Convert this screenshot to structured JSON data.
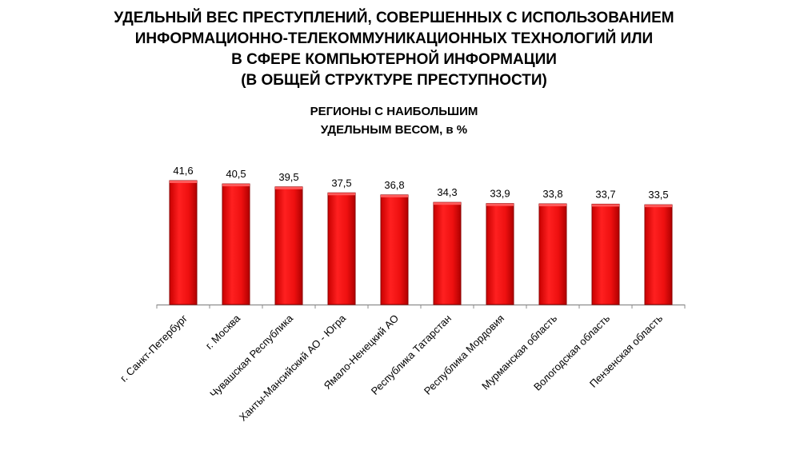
{
  "title_lines": [
    "УДЕЛЬНЫЙ ВЕС ПРЕСТУПЛЕНИЙ, СОВЕРШЕННЫХ С ИСПОЛЬЗОВАНИЕМ",
    "ИНФОРМАЦИОННО-ТЕЛЕКОММУНИКАЦИОННЫХ ТЕХНОЛОГИЙ ИЛИ",
    "В СФЕРЕ КОМПЬЮТЕРНОЙ ИНФОРМАЦИИ",
    "(В ОБЩЕЙ СТРУКТУРЕ ПРЕСТУПНОСТИ)"
  ],
  "subtitle_lines": [
    "РЕГИОНЫ С НАИБОЛЬШИМ",
    "УДЕЛЬНЫМ ВЕСОМ, в %"
  ],
  "chart_data": {
    "type": "bar",
    "title": "УДЕЛЬНЫЙ ВЕС ПРЕСТУПЛЕНИЙ, СОВЕРШЕННЫХ С ИСПОЛЬЗОВАНИЕМ ИНФОРМАЦИОННО-ТЕЛЕКОММУНИКАЦИОННЫХ ТЕХНОЛОГИЙ ИЛИ В СФЕРЕ КОМПЬЮТЕРНОЙ ИНФОРМАЦИИ (В ОБЩЕЙ СТРУКТУРЕ ПРЕСТУПНОСТИ)",
    "subtitle": "РЕГИОНЫ С НАИБОЛЬШИМ УДЕЛЬНЫМ ВЕСОМ, в %",
    "categories": [
      "г. Санкт-Петербург",
      "г. Москва",
      "Чувашская Республика",
      "Ханты-Мансийский АО - Югра",
      "Ямало-Ненецкий АО",
      "Республика Татарстан",
      "Республика Мордовия",
      "Мурманская область",
      "Вологодская область",
      "Пензенская область"
    ],
    "values": [
      41.6,
      40.5,
      39.5,
      37.5,
      36.8,
      34.3,
      33.9,
      33.8,
      33.7,
      33.5
    ],
    "value_labels": [
      "41,6",
      "40,5",
      "39,5",
      "37,5",
      "36,8",
      "34,3",
      "33,9",
      "33,8",
      "33,7",
      "33,5"
    ],
    "xlabel": "",
    "ylabel": "",
    "ylim": [
      0,
      41.6
    ],
    "grid": false,
    "colors": {
      "bar": "#ee1111",
      "bar_edge": "#8a0000",
      "axis": "#8c8c8c"
    }
  }
}
